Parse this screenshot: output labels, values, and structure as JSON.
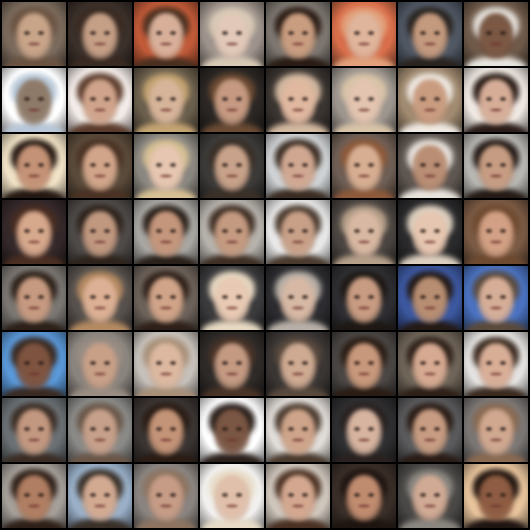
{
  "grid": {
    "rows": 8,
    "cols": 8,
    "tiles": [
      {
        "bg": "#7a6a5c",
        "skin": "#c8a489",
        "hair": "#6b5342"
      },
      {
        "bg": "#3b302a",
        "skin": "#c59f86",
        "hair": "#3a2b22"
      },
      {
        "bg": "#c05a38",
        "skin": "#d8b09a",
        "hair": "#4a3020"
      },
      {
        "bg": "#9e938c",
        "skin": "#e1c8b8",
        "hair": "#d8cab6"
      },
      {
        "bg": "#7d7670",
        "skin": "#c99d80",
        "hair": "#2a1c14"
      },
      {
        "bg": "#d86e4a",
        "skin": "#dfb59c",
        "hair": "#e3a27c"
      },
      {
        "bg": "#505864",
        "skin": "#c49a7e",
        "hair": "#2a2420"
      },
      {
        "bg": "#6f5a4a",
        "skin": "#7a5844",
        "hair": "#e6e2dc"
      },
      {
        "bg": "#ffffff",
        "skin": "#8e7a68",
        "hair": "#b8c8d8"
      },
      {
        "bg": "#f3ece8",
        "skin": "#d0a48c",
        "hair": "#5a3a2a"
      },
      {
        "bg": "#6a5e4c",
        "skin": "#d6b49a",
        "hair": "#c4a472"
      },
      {
        "bg": "#2a2624",
        "skin": "#c69a82",
        "hair": "#6a4a32"
      },
      {
        "bg": "#3a3430",
        "skin": "#e0b8a0",
        "hair": "#d2b8a0"
      },
      {
        "bg": "#9c958e",
        "skin": "#e2c4b0",
        "hair": "#d8c4a8"
      },
      {
        "bg": "#a08a70",
        "skin": "#c99c80",
        "hair": "#efe9e2"
      },
      {
        "bg": "#efe8e2",
        "skin": "#d6ae98",
        "hair": "#2a1c16"
      },
      {
        "bg": "#f0e2c6",
        "skin": "#c49276",
        "hair": "#241812"
      },
      {
        "bg": "#5a4a3a",
        "skin": "#d1a58a",
        "hair": "#4a3224"
      },
      {
        "bg": "#8a8680",
        "skin": "#e6c6b0",
        "hair": "#d6c094"
      },
      {
        "bg": "#3c3a38",
        "skin": "#c8a28a",
        "hair": "#3a3028"
      },
      {
        "bg": "#cfd2d4",
        "skin": "#d0a892",
        "hair": "#3a2c22"
      },
      {
        "bg": "#6e5e54",
        "skin": "#d7ae92",
        "hair": "#8e5a3a"
      },
      {
        "bg": "#5e5650",
        "skin": "#b98e74",
        "hair": "#e8e2dc"
      },
      {
        "bg": "#b8b6b2",
        "skin": "#c69c82",
        "hair": "#241a16"
      },
      {
        "bg": "#34282a",
        "skin": "#d6a88c",
        "hair": "#4a2e22"
      },
      {
        "bg": "#4e4a48",
        "skin": "#c09880",
        "hair": "#2e231c"
      },
      {
        "bg": "#a8a6a2",
        "skin": "#c4967c",
        "hair": "#2a201a"
      },
      {
        "bg": "#b6b2ac",
        "skin": "#c49a80",
        "hair": "#3e2e24"
      },
      {
        "bg": "#e8e8e8",
        "skin": "#c8a088",
        "hair": "#4a3a2e"
      },
      {
        "bg": "#4a4440",
        "skin": "#d8b8a2",
        "hair": "#b6a08a"
      },
      {
        "bg": "#2a2a2c",
        "skin": "#e6c6b0",
        "hair": "#ddd0c0"
      },
      {
        "bg": "#7a5a44",
        "skin": "#d2a084",
        "hair": "#6e4a30"
      },
      {
        "bg": "#7a7672",
        "skin": "#c69a80",
        "hair": "#2c2018"
      },
      {
        "bg": "#56504c",
        "skin": "#dcb094",
        "hair": "#b48a62"
      },
      {
        "bg": "#6c625a",
        "skin": "#d0a488",
        "hair": "#2e2018"
      },
      {
        "bg": "#3a3a3c",
        "skin": "#e8cab4",
        "hair": "#e6d8c2"
      },
      {
        "bg": "#2c2c30",
        "skin": "#d6b8a4",
        "hair": "#b8b0a8"
      },
      {
        "bg": "#2e2e32",
        "skin": "#c89c82",
        "hair": "#1e1814"
      },
      {
        "bg": "#3c58a0",
        "skin": "#b88e72",
        "hair": "#241a16"
      },
      {
        "bg": "#4a72c0",
        "skin": "#d6ae98",
        "hair": "#5a4a3c"
      },
      {
        "bg": "#5a98d8",
        "skin": "#7e5440",
        "hair": "#3a2a22"
      },
      {
        "bg": "#8a847e",
        "skin": "#c8a088",
        "hair": "#9a8e84"
      },
      {
        "bg": "#c6c0ba",
        "skin": "#dcb8a0",
        "hair": "#a89078"
      },
      {
        "bg": "#2e2a28",
        "skin": "#c49a82",
        "hair": "#4a3428"
      },
      {
        "bg": "#3a3634",
        "skin": "#ceaa92",
        "hair": "#5a4a3e"
      },
      {
        "bg": "#4a4644",
        "skin": "#c8987c",
        "hair": "#2a1c14"
      },
      {
        "bg": "#6e6458",
        "skin": "#d6aa92",
        "hair": "#2e2018"
      },
      {
        "bg": "#e4e2e0",
        "skin": "#d8ae96",
        "hair": "#3a2a20"
      },
      {
        "bg": "#6a7074",
        "skin": "#c39880",
        "hair": "#3a2c24"
      },
      {
        "bg": "#8a8a88",
        "skin": "#c6a08a",
        "hair": "#6a5648"
      },
      {
        "bg": "#3a3432",
        "skin": "#c49478",
        "hair": "#2a1c14"
      },
      {
        "bg": "#ffffff",
        "skin": "#7a5644",
        "hair": "#2a201c"
      },
      {
        "bg": "#e0dcd8",
        "skin": "#cea48a",
        "hair": "#4a3a2e"
      },
      {
        "bg": "#2e2e30",
        "skin": "#d6b4a0",
        "hair": "#2a2220"
      },
      {
        "bg": "#5a5a5c",
        "skin": "#c79c82",
        "hair": "#2a1c16"
      },
      {
        "bg": "#7a7674",
        "skin": "#d0a890",
        "hair": "#8a6a52"
      },
      {
        "bg": "#a6a09a",
        "skin": "#b07e62",
        "hair": "#2e2018"
      },
      {
        "bg": "#9ab0c8",
        "skin": "#d2aa92",
        "hair": "#3a3028"
      },
      {
        "bg": "#8a8480",
        "skin": "#c69c86",
        "hair": "#8e7460"
      },
      {
        "bg": "#f2f0ee",
        "skin": "#e0c0aa",
        "hair": "#e8dcc8"
      },
      {
        "bg": "#cfc6bc",
        "skin": "#d4a890",
        "hair": "#4a3022"
      },
      {
        "bg": "#3a2e28",
        "skin": "#c08c70",
        "hair": "#1e1410"
      },
      {
        "bg": "#4a4846",
        "skin": "#d0aa94",
        "hair": "#8a8680"
      },
      {
        "bg": "#e8c49c",
        "skin": "#8e5c42",
        "hair": "#1e1410"
      }
    ]
  }
}
